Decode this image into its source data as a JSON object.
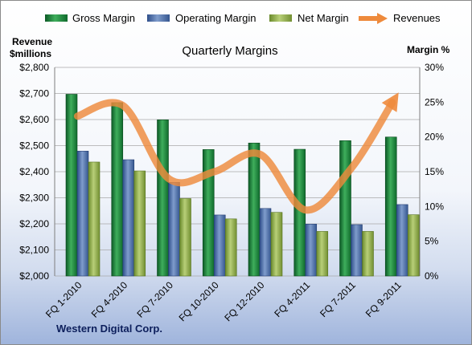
{
  "chart_data": {
    "type": "bar",
    "title": "Quarterly Margins",
    "footer": "Western Digital Corp.",
    "left_axis": {
      "label_line1": "Revenue",
      "label_line2": "$millions",
      "min": 2000,
      "max": 2800,
      "ticks": [
        "$2,000",
        "$2,100",
        "$2,200",
        "$2,300",
        "$2,400",
        "$2,500",
        "$2,600",
        "$2,700",
        "$2,800"
      ]
    },
    "right_axis": {
      "label": "Margin %",
      "min": 0,
      "max": 30,
      "ticks": [
        "0%",
        "5%",
        "10%",
        "15%",
        "20%",
        "25%",
        "30%"
      ]
    },
    "categories": [
      "FQ 1-2010",
      "FQ 4-2010",
      "FQ 7-2010",
      "FQ 10-2010",
      "FQ 12-2010",
      "FQ 4-2011",
      "FQ 7-2011",
      "FQ 9-2011"
    ],
    "series": [
      {
        "name": "Gross Margin",
        "type": "bar",
        "axis": "left",
        "color": "#1e7b3c",
        "values": [
          2697,
          2665,
          2599,
          2485,
          2510,
          2486,
          2519,
          2533
        ]
      },
      {
        "name": "Operating Margin",
        "type": "bar",
        "axis": "left",
        "color": "#4f6fa8",
        "values": [
          2479,
          2446,
          2359,
          2234,
          2259,
          2199,
          2197,
          2274
        ]
      },
      {
        "name": "Net Margin",
        "type": "bar",
        "axis": "left",
        "color": "#8fab48",
        "values": [
          2437,
          2403,
          2297,
          2219,
          2244,
          2171,
          2171,
          2235
        ]
      },
      {
        "name": "Revenues",
        "type": "line",
        "axis": "right",
        "color": "#ee8a3c",
        "values": [
          23,
          24.5,
          14,
          15,
          17.5,
          9.5,
          15.5,
          26
        ]
      }
    ],
    "grid": true,
    "legend_position": "top"
  }
}
